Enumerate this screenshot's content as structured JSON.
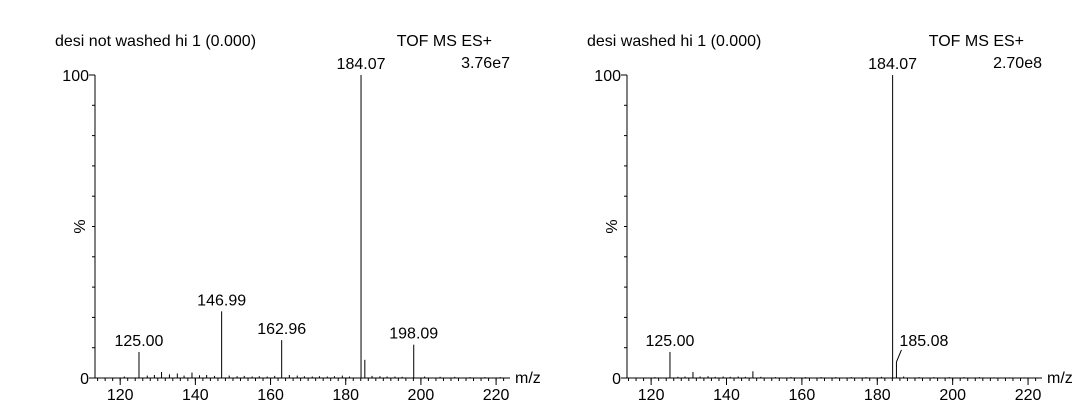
{
  "chart_data": [
    {
      "type": "stem",
      "title": "desi not washed hi 1 (0.000)",
      "instrument": "TOF MS ES+",
      "intensity": "3.76e7",
      "xlabel": "m/z",
      "ylabel": "%",
      "color": "#000000",
      "xlim": [
        113.3,
        223.7
      ],
      "ylim": [
        0,
        100
      ],
      "xticks": [
        120,
        140,
        160,
        180,
        200,
        220
      ],
      "yticks": [
        0,
        100
      ],
      "series": [
        {
          "name": "desi not washed hi 1",
          "x": [
            121.1,
            125.0,
            127.2,
            129.1,
            131.0,
            133.1,
            135.2,
            137.0,
            139.1,
            141.1,
            143.0,
            145.1,
            146.99,
            149.0,
            151.1,
            153.0,
            155.1,
            157.0,
            159.1,
            161.1,
            162.96,
            165.0,
            167.1,
            169.0,
            171.1,
            173.0,
            175.1,
            177.0,
            179.1,
            181.0,
            184.07,
            185.08,
            187.0,
            189.1,
            191.0,
            193.1,
            195.0,
            198.09,
            201.0,
            205.1,
            209.0,
            213.1,
            217.0,
            221.1
          ],
          "values": [
            0.5,
            8.6,
            0.8,
            1.0,
            2.0,
            1.2,
            1.5,
            0.8,
            1.8,
            0.9,
            1.0,
            0.7,
            22,
            0.8,
            0.6,
            0.7,
            0.5,
            0.6,
            0.5,
            0.7,
            12.5,
            1.0,
            0.8,
            0.6,
            0.5,
            0.6,
            0.5,
            0.6,
            0.8,
            0.5,
            100,
            6,
            0.7,
            0.6,
            0.5,
            0.5,
            0.4,
            11,
            0.5,
            0.4,
            0.4,
            0.3,
            0.3,
            0.3
          ],
          "peak_labels": [
            null,
            "125.00",
            null,
            null,
            null,
            null,
            null,
            null,
            null,
            null,
            null,
            null,
            "146.99",
            null,
            null,
            null,
            null,
            null,
            null,
            null,
            "162.96",
            null,
            null,
            null,
            null,
            null,
            null,
            null,
            null,
            null,
            "184.07",
            null,
            null,
            null,
            null,
            null,
            null,
            "198.09",
            null,
            null,
            null,
            null,
            null,
            null
          ]
        }
      ]
    },
    {
      "type": "stem",
      "title": "desi washed hi 1 (0.000)",
      "instrument": "TOF MS ES+",
      "intensity": "2.70e8",
      "xlabel": "m/z",
      "ylabel": "%",
      "color": "#000000",
      "xlim": [
        113.6,
        223.7
      ],
      "ylim": [
        0,
        100
      ],
      "xticks": [
        120,
        140,
        160,
        180,
        200,
        220
      ],
      "yticks": [
        0,
        100
      ],
      "series": [
        {
          "name": "desi washed hi 1",
          "x": [
            121.0,
            125.0,
            127.1,
            129.0,
            131.1,
            133.0,
            135.1,
            137.0,
            139.1,
            141.0,
            143.1,
            145.0,
            147.0,
            149.1,
            153.0,
            157.1,
            161.0,
            165.1,
            169.0,
            173.1,
            177.0,
            181.1,
            184.07,
            185.08,
            187.0,
            191.1,
            195.0,
            199.1,
            203.0,
            207.1,
            211.0,
            215.1,
            219.0
          ],
          "values": [
            0.3,
            8.6,
            0.4,
            0.5,
            2.0,
            0.5,
            0.6,
            0.4,
            0.5,
            0.4,
            0.5,
            0.4,
            2.2,
            0.4,
            0.3,
            0.3,
            0.3,
            0.3,
            0.3,
            0.3,
            0.3,
            0.4,
            100,
            5.3,
            0.5,
            0.3,
            0.3,
            0.3,
            0.3,
            0.3,
            0.2,
            0.2,
            0.2
          ],
          "peak_labels": [
            null,
            "125.00",
            null,
            null,
            null,
            null,
            null,
            null,
            null,
            null,
            null,
            null,
            null,
            null,
            null,
            null,
            null,
            null,
            null,
            null,
            null,
            null,
            "184.07",
            "185.08",
            null,
            null,
            null,
            null,
            null,
            null,
            null,
            null,
            null
          ]
        }
      ]
    }
  ]
}
